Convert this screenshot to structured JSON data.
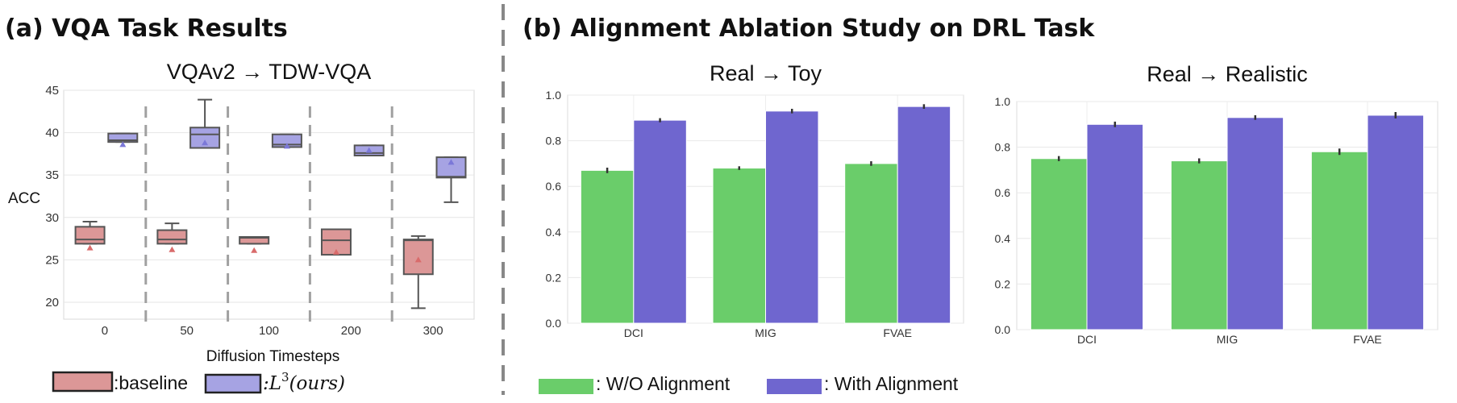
{
  "panel_a": {
    "section_title": "(a) VQA Task Results",
    "legend": {
      "baseline_label": ":baseline",
      "ours_prefix": ":L",
      "ours_sup": "3",
      "ours_suffix": "(ours)"
    }
  },
  "panel_b": {
    "section_title": "(b) Alignment Ablation Study on DRL Task",
    "legend": {
      "without_label": ": W/O Alignment",
      "with_label": ": With Alignment"
    }
  },
  "colors": {
    "baseline": "#dc9797",
    "ours": "#a6a3e3",
    "baseline_mean": "#d96b6b",
    "ours_mean": "#7b78d8",
    "without_alignment": "#6acd6a",
    "with_alignment": "#6f66cf",
    "box_edge": "#555555",
    "divider": "#888888"
  },
  "chart_data": [
    {
      "type": "box",
      "title": "VQAv2 → TDW-VQA",
      "xlabel": "Diffusion Timesteps",
      "ylabel": "ACC",
      "categories": [
        "0",
        "50",
        "100",
        "200",
        "300"
      ],
      "ylim": [
        18,
        45
      ],
      "yticks": [
        20,
        25,
        30,
        35,
        40,
        45
      ],
      "grid": true,
      "series": [
        {
          "name": "baseline",
          "boxes": [
            {
              "whisker_low": 26.9,
              "q1": 26.9,
              "median": 27.4,
              "q3": 28.9,
              "whisker_high": 29.5,
              "mean": 26.4
            },
            {
              "whisker_low": 26.9,
              "q1": 26.9,
              "median": 27.4,
              "q3": 28.5,
              "whisker_high": 29.3,
              "mean": 26.2
            },
            {
              "whisker_low": 26.9,
              "q1": 26.9,
              "median": 27.6,
              "q3": 27.7,
              "whisker_high": 27.7,
              "mean": 26.1
            },
            {
              "whisker_low": 25.6,
              "q1": 25.6,
              "median": 27.3,
              "q3": 28.6,
              "whisker_high": 28.6,
              "mean": 25.9
            },
            {
              "whisker_low": 19.3,
              "q1": 23.3,
              "median": 27.3,
              "q3": 27.4,
              "whisker_high": 27.8,
              "mean": 25.0
            }
          ]
        },
        {
          "name": "L3(ours)",
          "boxes": [
            {
              "whisker_low": 38.9,
              "q1": 38.9,
              "median": 39.1,
              "q3": 39.9,
              "whisker_high": 39.9,
              "mean": 38.6
            },
            {
              "whisker_low": 38.2,
              "q1": 38.2,
              "median": 39.8,
              "q3": 40.6,
              "whisker_high": 43.9,
              "mean": 38.8
            },
            {
              "whisker_low": 38.3,
              "q1": 38.3,
              "median": 38.6,
              "q3": 39.8,
              "whisker_high": 39.8,
              "mean": 38.4
            },
            {
              "whisker_low": 37.3,
              "q1": 37.3,
              "median": 37.6,
              "q3": 38.5,
              "whisker_high": 38.5,
              "mean": 37.9
            },
            {
              "whisker_low": 31.8,
              "q1": 34.7,
              "median": 34.8,
              "q3": 37.1,
              "whisker_high": 37.1,
              "mean": 36.5
            }
          ]
        }
      ]
    },
    {
      "type": "bar",
      "title": "Real → Toy",
      "categories": [
        "DCI",
        "MIG",
        "FVAE"
      ],
      "ylim": [
        0,
        1.0
      ],
      "yticks": [
        "0.0",
        "0.2",
        "0.4",
        "0.6",
        "0.8",
        "1.0"
      ],
      "grid": true,
      "series": [
        {
          "name": "W/O Alignment",
          "values": [
            0.67,
            0.68,
            0.7
          ],
          "errors": [
            0.012,
            0.008,
            0.01
          ]
        },
        {
          "name": "With Alignment",
          "values": [
            0.89,
            0.93,
            0.95
          ],
          "errors": [
            0.009,
            0.01,
            0.01
          ]
        }
      ]
    },
    {
      "type": "bar",
      "title": "Real → Realistic",
      "categories": [
        "DCI",
        "MIG",
        "FVAE"
      ],
      "ylim": [
        0,
        1.0
      ],
      "yticks": [
        "0.0",
        "0.2",
        "0.4",
        "0.6",
        "0.8",
        "1.0"
      ],
      "grid": true,
      "series": [
        {
          "name": "W/O Alignment",
          "values": [
            0.75,
            0.74,
            0.78
          ],
          "errors": [
            0.011,
            0.011,
            0.014
          ]
        },
        {
          "name": "With Alignment",
          "values": [
            0.9,
            0.93,
            0.94
          ],
          "errors": [
            0.012,
            0.01,
            0.014
          ]
        }
      ]
    }
  ]
}
